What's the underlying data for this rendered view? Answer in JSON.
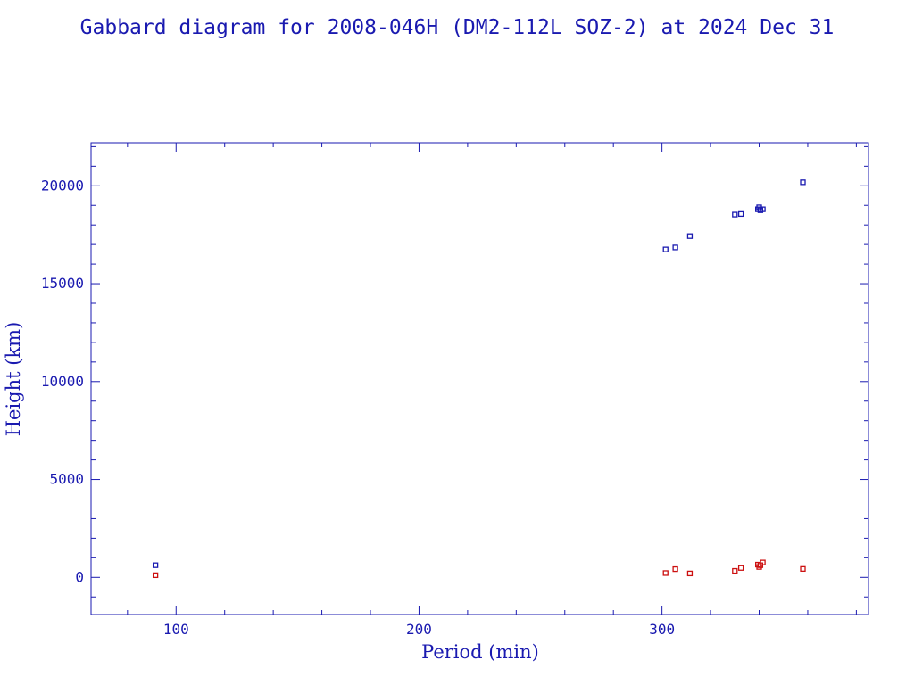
{
  "chart_data": {
    "type": "scatter",
    "title": "Gabbard diagram for 2008-046H (DM2-112L SOZ-2) at 2024 Dec 31",
    "xlabel": "Period (min)",
    "ylabel": "Height (km)",
    "xlim": [
      65,
      385
    ],
    "ylim": [
      -1900,
      22200
    ],
    "x_ticks": [
      100,
      200,
      300
    ],
    "y_ticks": [
      0,
      5000,
      10000,
      15000,
      20000
    ],
    "x_minor_step": 20,
    "y_minor_step": 1000,
    "grid": false,
    "colors": {
      "axis": "#1a1ab0",
      "apogee": "#1a1ab0",
      "perigee": "#cc1010"
    },
    "series": [
      {
        "role": "apogee",
        "points": [
          [
            91.5,
            620
          ],
          [
            301.5,
            16750
          ],
          [
            305.5,
            16850
          ],
          [
            311.5,
            17430
          ],
          [
            330,
            18530
          ],
          [
            332.5,
            18560
          ],
          [
            339.5,
            18800
          ],
          [
            340,
            18900
          ],
          [
            340.5,
            18750
          ],
          [
            341.5,
            18800
          ],
          [
            358,
            20180
          ]
        ]
      },
      {
        "role": "perigee",
        "points": [
          [
            91.5,
            110
          ],
          [
            301.5,
            220
          ],
          [
            305.5,
            420
          ],
          [
            311.5,
            200
          ],
          [
            330,
            330
          ],
          [
            332.5,
            480
          ],
          [
            339.5,
            650
          ],
          [
            340,
            530
          ],
          [
            340.5,
            620
          ],
          [
            341.5,
            760
          ],
          [
            358,
            430
          ]
        ]
      }
    ]
  }
}
